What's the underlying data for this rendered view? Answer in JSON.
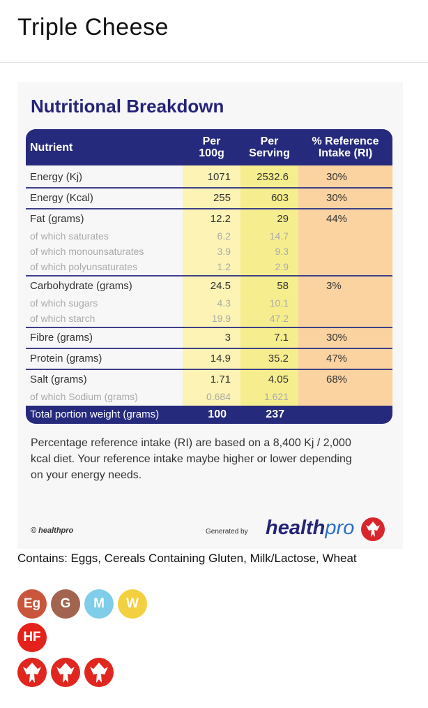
{
  "header": {
    "title": "Triple Cheese"
  },
  "panel": {
    "title": "Nutritional Breakdown",
    "columns": [
      [
        "Nutrient"
      ],
      [
        "Per",
        "100g"
      ],
      [
        "Per",
        "Serving"
      ],
      [
        "% Reference",
        "Intake (RI)"
      ]
    ],
    "groups": [
      [
        [
          "Energy (Kj)",
          "1071",
          "2532.6",
          "30%"
        ]
      ],
      [
        [
          "Energy (Kcal)",
          "255",
          "603",
          "30%"
        ]
      ],
      [
        [
          "Fat (grams)",
          "12.2",
          "29",
          "44%"
        ],
        [
          "of which saturates",
          "6.2",
          "14.7"
        ],
        [
          "of which monounsaturates",
          "3.9",
          "9.3"
        ],
        [
          "of which polyunsaturates",
          "1.2",
          "2.9"
        ]
      ],
      [
        [
          "Carbohydrate (grams)",
          "24.5",
          "58",
          "3%"
        ],
        [
          "of which sugars",
          "4.3",
          "10.1"
        ],
        [
          "of which starch",
          "19.9",
          "47.2"
        ]
      ],
      [
        [
          "Fibre (grams)",
          "3",
          "7.1",
          "30%"
        ]
      ],
      [
        [
          "Protein (grams)",
          "14.9",
          "35.2",
          "47%"
        ]
      ],
      [
        [
          "Salt (grams)",
          "1.71",
          "4.05",
          "68%"
        ],
        [
          "of which Sodium (grams)",
          "0.684",
          "1.621"
        ]
      ]
    ],
    "total": [
      "Total portion weight (grams)",
      "100",
      "237"
    ],
    "footnote": "Percentage reference intake (RI) are based on a 8,400 Kj / 2,000 kcal diet. Your reference intake maybe higher or lower depending on your energy needs.",
    "copyright": "© healthpro",
    "generated_by": "Generated by",
    "logo": [
      "health",
      "pro"
    ]
  },
  "allergens": {
    "text": "Contains: Eggs, Cereals Containing Gluten, Milk/Lactose, Wheat",
    "badges": [
      "Eg",
      "G",
      "M",
      "W"
    ],
    "warning": [
      "HF"
    ]
  }
}
